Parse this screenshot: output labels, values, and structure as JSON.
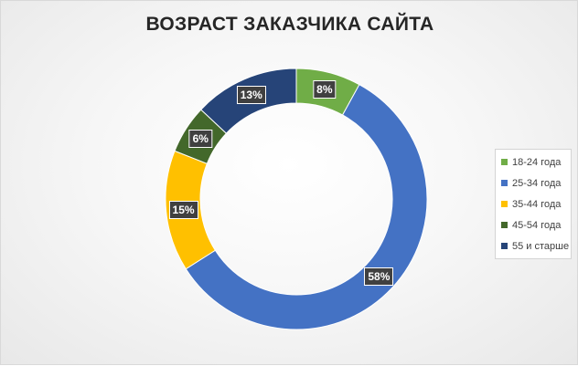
{
  "chart_data": {
    "type": "pie",
    "title": "ВОЗРАСТ ЗАКАЗЧИКА САЙТА",
    "categories": [
      "18-24 года",
      "25-34 года",
      "35-44 года",
      "45-54 года",
      "55 и старше"
    ],
    "values": [
      8,
      58,
      15,
      6,
      13
    ],
    "value_labels": [
      "8%",
      "58%",
      "15%",
      "6%",
      "13%"
    ],
    "colors": [
      "#70AD47",
      "#4472C4",
      "#FFC000",
      "#43682B",
      "#264478"
    ],
    "hole": "donut",
    "legend": "right"
  }
}
